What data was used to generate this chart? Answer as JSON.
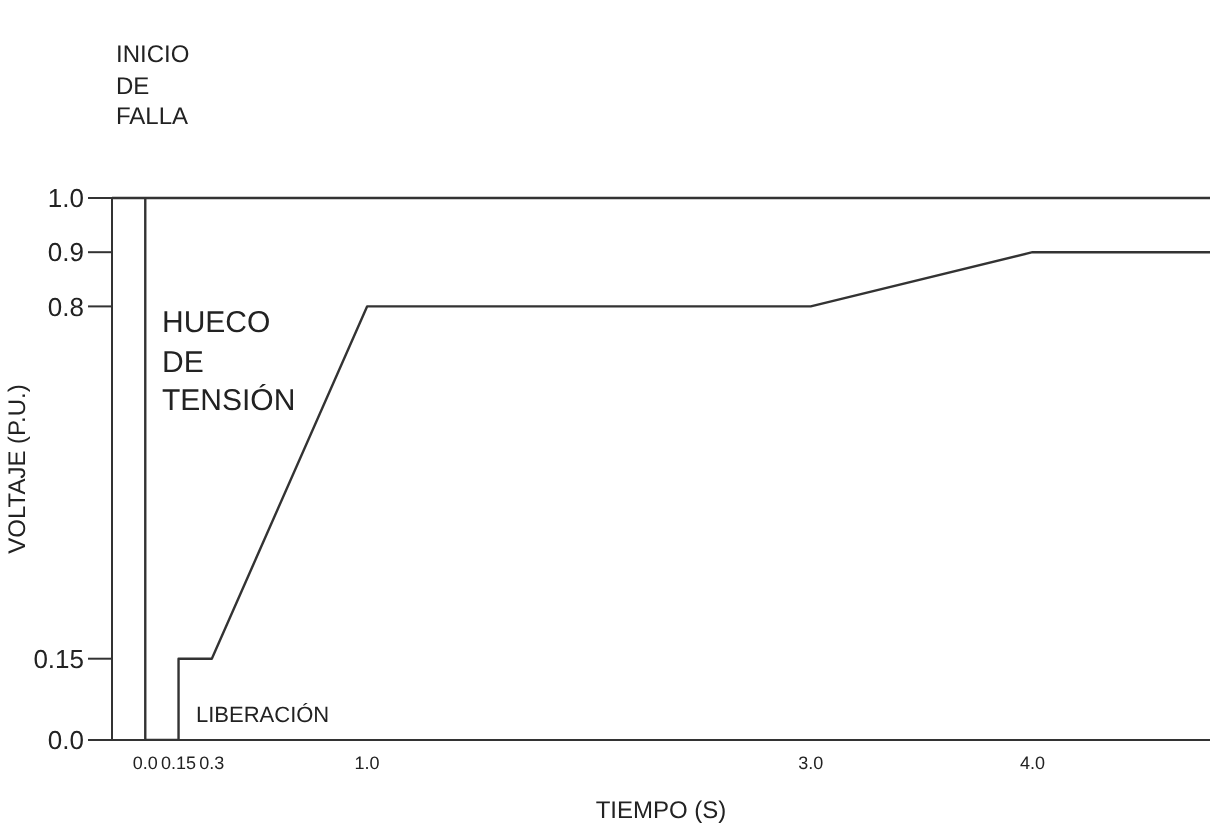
{
  "chart_data": {
    "type": "line",
    "xlabel": "TIEMPO (S)",
    "ylabel": "VOLTAJE (P.U.)",
    "annotations": [
      "INICIO DE FALLA",
      "HUECO DE TENSIÓN",
      "LIBERACIÓN"
    ],
    "x": [
      0,
      0,
      0.15,
      0.15,
      0.3,
      1.0,
      3.0,
      4.0,
      4.8
    ],
    "series": [
      {
        "color": "#333333",
        "values": [
          1.0,
          0,
          0,
          0.15,
          0.15,
          0.8,
          0.8,
          0.9,
          0.9
        ]
      }
    ],
    "xlim": [
      -0.15,
      4.8
    ],
    "xticks": [
      {
        "value": 0,
        "label": "0.0"
      },
      0.15,
      0.3,
      {
        "value": 1,
        "label": "1.0"
      },
      {
        "value": 3,
        "label": "3.0"
      },
      {
        "value": 4,
        "label": "4.0"
      }
    ],
    "ylim": [
      0,
      1.0
    ],
    "yticks": [
      {
        "value": 0,
        "label": "0.0"
      },
      0.15,
      0.8,
      0.9,
      {
        "value": 1,
        "label": "1.0"
      }
    ],
    "ref_lines": [
      {
        "axis": "y",
        "value": 1.0,
        "color": "#333333"
      }
    ],
    "marker": "none",
    "line_style": "solid"
  }
}
